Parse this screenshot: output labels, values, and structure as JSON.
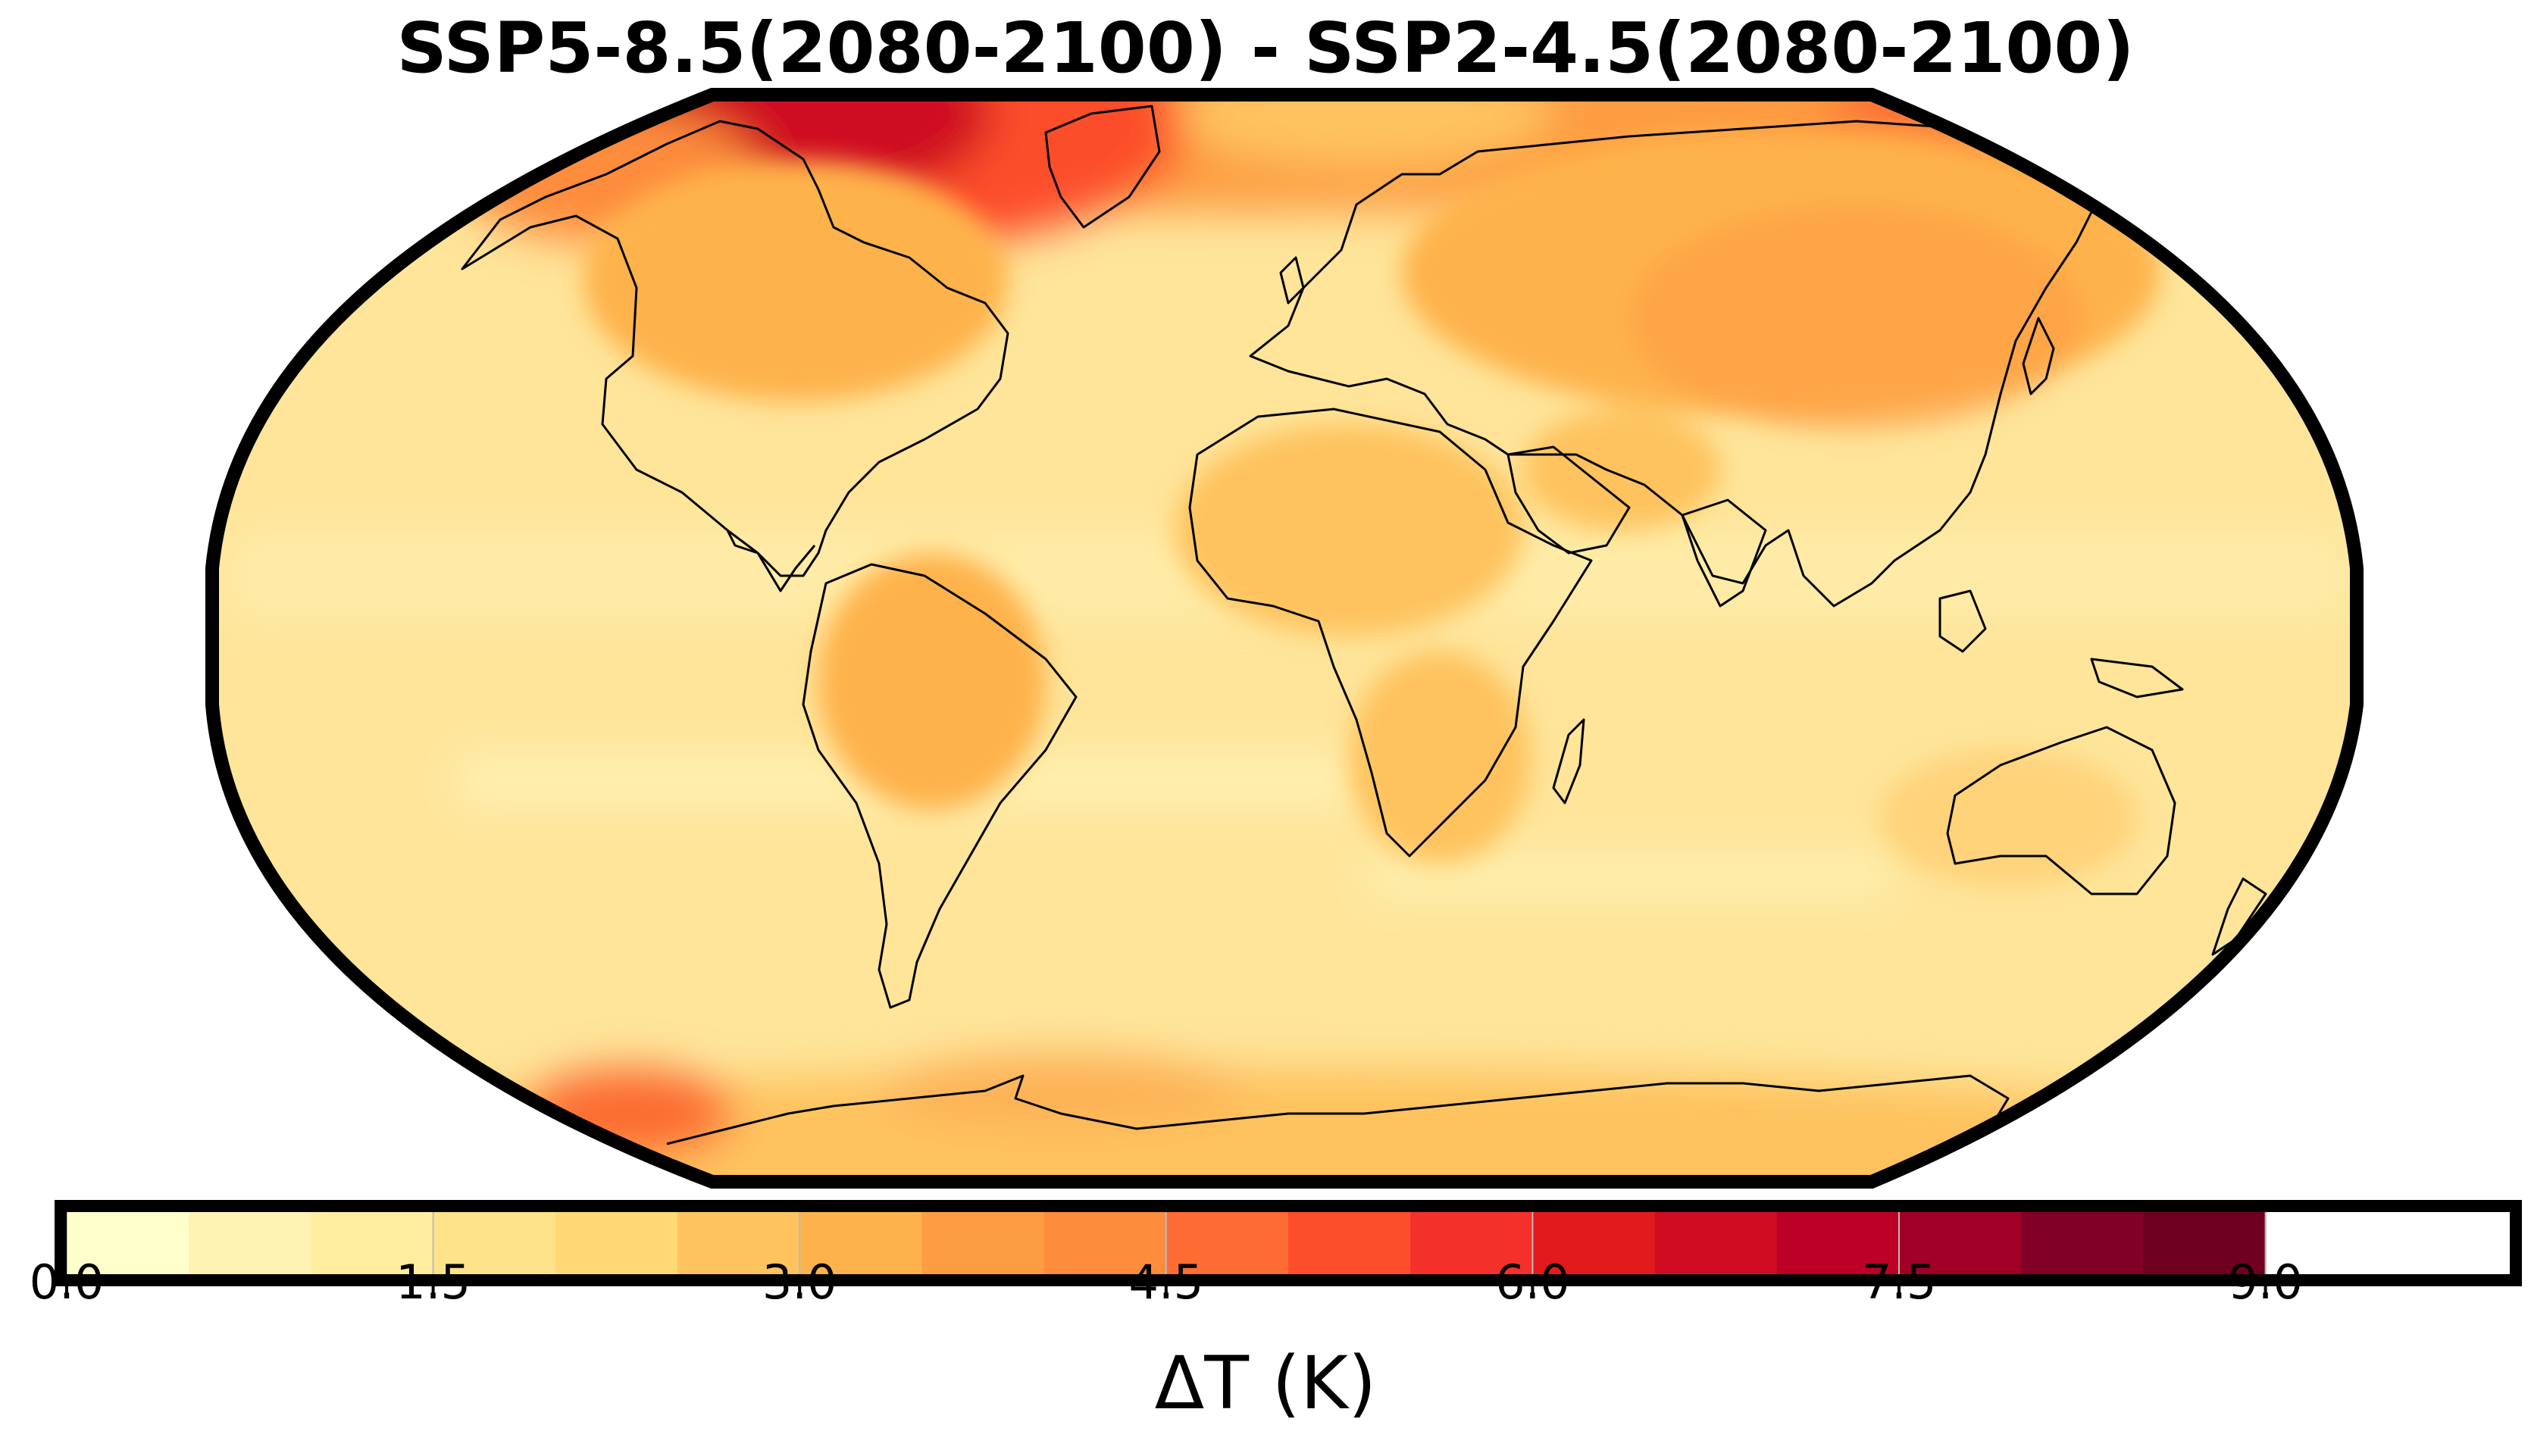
{
  "title": "SSP5-8.5(2080-2100) - SSP2-4.5(2080-2100)",
  "colorbar": {
    "label": "ΔT (K)",
    "min": 0.0,
    "max": 10.0,
    "step": 0.5,
    "ticks": [
      "0.0",
      "1.5",
      "3.0",
      "4.5",
      "6.0",
      "7.5",
      "9.0"
    ],
    "tick_values": [
      0.0,
      1.5,
      3.0,
      4.5,
      6.0,
      7.5,
      9.0
    ],
    "colors": [
      "#ffffcc",
      "#fff3b4",
      "#ffeda0",
      "#fee38a",
      "#fed976",
      "#fec35f",
      "#feb24c",
      "#fd9d43",
      "#fd8d3c",
      "#fc6c33",
      "#fc4e2a",
      "#f3312a",
      "#e31a1c",
      "#cf0c22",
      "#bd0026",
      "#a00026",
      "#800026",
      "#700020"
    ]
  },
  "map": {
    "projection": "Robinson",
    "colormap": "YlOrRd",
    "background_color": "#fee59a"
  }
}
